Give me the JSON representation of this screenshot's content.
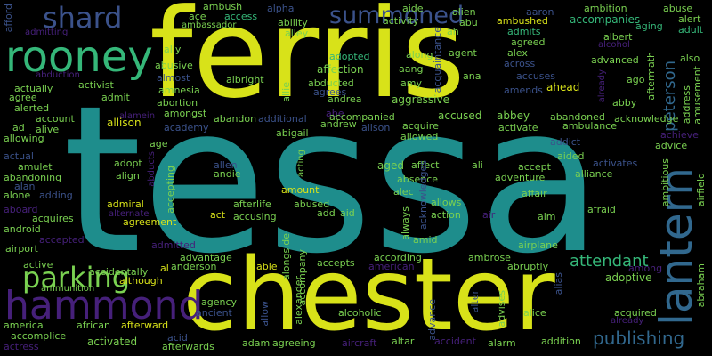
{
  "words": {
    "tessa": "tessa",
    "ferris": "ferris",
    "chester": "chester",
    "hammond": "hammond",
    "lantern": "lantern",
    "rooney": "rooney",
    "parking": "parking",
    "shard": "shard",
    "summoned": "summoned",
    "peterson": "peterson",
    "publishing": "publishing",
    "attendant": "attendant",
    "afford": "afford",
    "admitting": "admitting",
    "ambush": "ambush",
    "ace": "ace",
    "access": "access",
    "alpha": "alpha",
    "aide": "aide",
    "alien": "alien",
    "aaron": "aaron",
    "ambition": "ambition",
    "abuse": "abuse",
    "ambassador": "ambassador",
    "ability": "ability",
    "activity": "activity",
    "abu": "abu",
    "ambushed": "ambushed",
    "accompanies": "accompanies",
    "alert": "alert",
    "admits": "admits",
    "aging": "aging",
    "adult": "adult",
    "alley": "alley",
    "ah": "ah",
    "acquaintance": "acquaintance",
    "agreed": "agreed",
    "albert": "albert",
    "alcohol": "alcohol",
    "ally": "ally",
    "abusive": "abusive",
    "adopted": "adopted",
    "along": "along",
    "agent": "agent",
    "alex": "alex",
    "advanced": "advanced",
    "also": "also",
    "abduction": "abduction",
    "almost": "almost",
    "affection": "affection",
    "aang": "aang",
    "across": "across",
    "ambulance": "ambulance",
    "ago": "ago",
    "aftermath": "aftermath",
    "albright": "albright",
    "abducted": "abducted",
    "amy": "amy",
    "ana": "ana",
    "accuses": "accuses",
    "amends": "amends",
    "ahead": "ahead",
    "already": "already",
    "amusement": "amusement",
    "address": "address",
    "actually": "actually",
    "activist": "activist",
    "amnesia": "amnesia",
    "allie": "allie",
    "agrees": "agrees",
    "admit": "admit",
    "abortion": "abortion",
    "andrea": "andrea",
    "aggressive": "aggressive",
    "abby": "abby",
    "alerted": "alerted",
    "amongst": "amongst",
    "abe": "abe",
    "accused": "accused",
    "abbey": "abbey",
    "agree": "agree",
    "alamein": "alamein",
    "additional": "additional",
    "accompanied": "accompanied",
    "abandoned": "abandoned",
    "acknowledge": "acknowledge",
    "account": "account",
    "allison": "allison",
    "abandon": "abandon",
    "andrew": "andrew",
    "alison": "alison",
    "acquire": "acquire",
    "activate": "activate",
    "achieve": "achieve",
    "ad": "ad",
    "alive": "alive",
    "academy": "academy",
    "abigail": "abigail",
    "allowed": "allowed",
    "addict": "addict",
    "advice": "advice",
    "allowing": "allowing",
    "age": "age",
    "aided": "aided",
    "actual": "actual",
    "adopt": "adopt",
    "abducts": "abducts",
    "allen": "allen",
    "aged": "aged",
    "affect": "affect",
    "ali": "ali",
    "accept": "accept",
    "activates": "activates",
    "ambitious": "ambitious",
    "amulet": "amulet",
    "align": "align",
    "andie": "andie",
    "absence": "absence",
    "adventure": "adventure",
    "alliance": "alliance",
    "abandoning": "abandoning",
    "accepting": "accepting",
    "acting": "acting",
    "airfield": "airfield",
    "alan": "alan",
    "amount": "amount",
    "alec": "alec",
    "affair": "affair",
    "alone": "alone",
    "adding": "adding",
    "acknowledges": "acknowledges",
    "allows": "allows",
    "afraid": "afraid",
    "aboard": "aboard",
    "admiral": "admiral",
    "afterlife": "afterlife",
    "abused": "abused",
    "acquires": "acquires",
    "alternate": "alternate",
    "act": "act",
    "accusing": "accusing",
    "add": "add",
    "aid": "aid",
    "action": "action",
    "air": "air",
    "aim": "aim",
    "agreement": "agreement",
    "android": "android",
    "always": "always",
    "accepted": "accepted",
    "admitted": "admitted",
    "amid": "amid",
    "airport": "airport",
    "alongside": "alongside",
    "airplane": "airplane",
    "advantage": "advantage",
    "according": "according",
    "ambrose": "ambrose",
    "active": "active",
    "al": "al",
    "anderson": "anderson",
    "able": "able",
    "accompany": "accompany",
    "accepts": "accepts",
    "american": "american",
    "abruptly": "abruptly",
    "adoptive": "adoptive",
    "among": "among",
    "abraham": "abraham",
    "accidentally": "accidentally",
    "although": "although",
    "alias": "alias",
    "ammunition": "ammunition",
    "agency": "agency",
    "allow": "allow",
    "alter": "alter",
    "advises": "advises",
    "alexander": "alexander",
    "acquired": "acquired",
    "ancient": "ancient",
    "alcoholic": "alcoholic",
    "advance": "advance",
    "alice": "alice",
    "america": "america",
    "african": "african",
    "afterward": "afterward",
    "accomplice": "accomplice",
    "activated": "activated",
    "acid": "acid",
    "actress": "actress",
    "afterwards": "afterwards",
    "adam": "adam",
    "agreeing": "agreeing",
    "aircraft": "aircraft",
    "altar": "altar",
    "accident": "accident",
    "alarm": "alarm",
    "addition": "addition"
  },
  "colors": {
    "background": "#000000",
    "yellow": "#d8e219",
    "teal": "#1e8d8c",
    "green": "#35b779",
    "lime": "#7ad151",
    "purple": "#46207a",
    "indigo": "#3b528b",
    "blue": "#31688e",
    "deep_purple": "#482878"
  }
}
